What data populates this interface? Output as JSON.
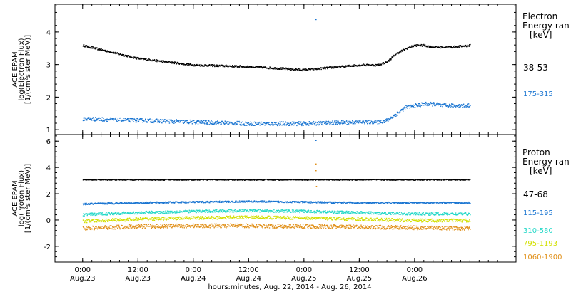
{
  "chart_data": [
    {
      "type": "scatter",
      "title": "",
      "ylabel": [
        "ACE EPAM",
        "log(Electron Flux)",
        "[1/(cm²s ster MeV)]"
      ],
      "ylim": [
        0.85,
        4.85
      ],
      "yticks": [
        1,
        2,
        3,
        4
      ],
      "xlim": [
        -6,
        94
      ],
      "legend": {
        "title": "Electron",
        "subtitle": "Energy ran",
        "units": "[keV]",
        "placement": "right"
      },
      "series": [
        {
          "name": "38-53",
          "color": "#000000",
          "x": [
            0,
            12,
            24,
            36,
            48,
            60,
            62,
            64,
            66,
            68,
            70,
            72,
            74,
            76,
            78,
            80,
            84
          ],
          "y": [
            3.6,
            3.2,
            3.0,
            2.95,
            2.85,
            3.0,
            3.0,
            3.0,
            3.1,
            3.35,
            3.5,
            3.6,
            3.6,
            3.55,
            3.55,
            3.55,
            3.6
          ],
          "noise": 0.03
        },
        {
          "name": "175-315",
          "color": "#1a75d1",
          "x": [
            0,
            12,
            24,
            36,
            48,
            60,
            64,
            66,
            68,
            70,
            72,
            74,
            76,
            78,
            80,
            84
          ],
          "y": [
            1.35,
            1.3,
            1.25,
            1.2,
            1.2,
            1.25,
            1.25,
            1.3,
            1.5,
            1.7,
            1.75,
            1.8,
            1.8,
            1.75,
            1.75,
            1.75
          ],
          "noise": 0.06,
          "outliers": [
            [
              50.5,
              4.4
            ]
          ]
        }
      ]
    },
    {
      "type": "scatter",
      "title": "",
      "ylabel": [
        "ACE EPAM",
        "log(Proton Flux)",
        "[1/(cm²s ster MeV)]"
      ],
      "ylim": [
        -3.2,
        6.5
      ],
      "yticks": [
        -2,
        0,
        2,
        4,
        6
      ],
      "xlim": [
        -6,
        94
      ],
      "legend": {
        "title": "Proton",
        "subtitle": "Energy ran",
        "units": "[keV]",
        "placement": "right"
      },
      "series": [
        {
          "name": "47-68",
          "color": "#000000",
          "x": [
            0,
            24,
            48,
            72,
            84
          ],
          "y": [
            3.1,
            3.1,
            3.1,
            3.1,
            3.1
          ],
          "noise": 0.04
        },
        {
          "name": "115-195",
          "color": "#1a75d1",
          "x": [
            0,
            12,
            24,
            36,
            48,
            60,
            72,
            84
          ],
          "y": [
            1.25,
            1.35,
            1.4,
            1.45,
            1.4,
            1.35,
            1.35,
            1.35
          ],
          "noise": 0.06,
          "outliers": [
            [
              50.5,
              6.1
            ]
          ]
        },
        {
          "name": "310-580",
          "color": "#25d8c8",
          "x": [
            0,
            12,
            24,
            36,
            48,
            60,
            72,
            84
          ],
          "y": [
            0.45,
            0.6,
            0.7,
            0.75,
            0.7,
            0.6,
            0.5,
            0.5
          ],
          "noise": 0.1
        },
        {
          "name": "795-1193",
          "color": "#d2e000",
          "x": [
            0,
            12,
            24,
            36,
            48,
            60,
            72,
            84
          ],
          "y": [
            -0.05,
            0.1,
            0.2,
            0.25,
            0.2,
            0.1,
            0.0,
            0.0
          ],
          "noise": 0.12
        },
        {
          "name": "1060-1900",
          "color": "#e0901a",
          "x": [
            0,
            12,
            24,
            36,
            48,
            60,
            72,
            84
          ],
          "y": [
            -0.6,
            -0.45,
            -0.4,
            -0.4,
            -0.45,
            -0.5,
            -0.55,
            -0.6
          ],
          "noise": 0.15,
          "outliers": [
            [
              50.5,
              4.3
            ],
            [
              50.5,
              3.8
            ],
            [
              50.6,
              2.6
            ]
          ]
        }
      ]
    }
  ],
  "xaxis": {
    "ticks": [
      {
        "hours": 0,
        "time": "0:00",
        "date": "Aug.23"
      },
      {
        "hours": 12,
        "time": "12:00",
        "date": "Aug.23"
      },
      {
        "hours": 24,
        "time": "0:00",
        "date": "Aug.24"
      },
      {
        "hours": 36,
        "time": "12:00",
        "date": "Aug.24"
      },
      {
        "hours": 48,
        "time": "0:00",
        "date": "Aug.25"
      },
      {
        "hours": 60,
        "time": "12:00",
        "date": "Aug.25"
      },
      {
        "hours": 72,
        "time": "0:00",
        "date": "Aug.26"
      }
    ],
    "label": "hours:minutes, Aug. 22, 2014 - Aug. 26, 2014"
  }
}
